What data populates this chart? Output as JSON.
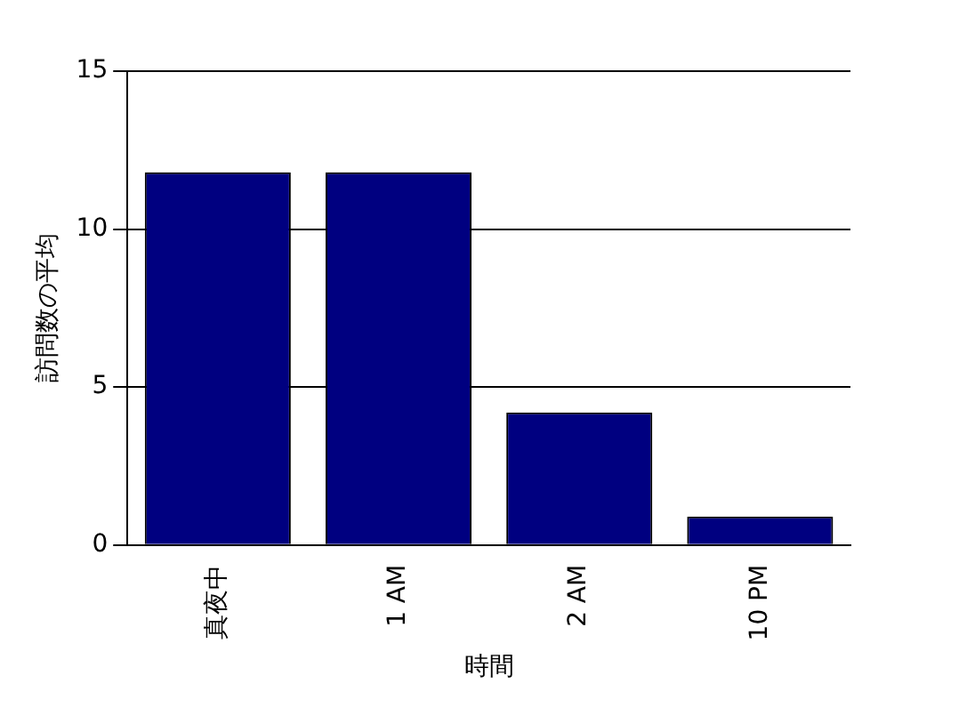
{
  "chart_data": {
    "type": "bar",
    "categories": [
      "真夜中",
      "1 AM",
      "2 AM",
      "10 PM"
    ],
    "values": [
      11.8,
      11.8,
      4.2,
      0.9
    ],
    "color": "#000080",
    "xlabel": "時間",
    "ylabel": "訪問数の平均",
    "ylim": [
      0,
      15
    ],
    "yticks": [
      0,
      5,
      10,
      15
    ],
    "grid": "y",
    "legend": false
  }
}
